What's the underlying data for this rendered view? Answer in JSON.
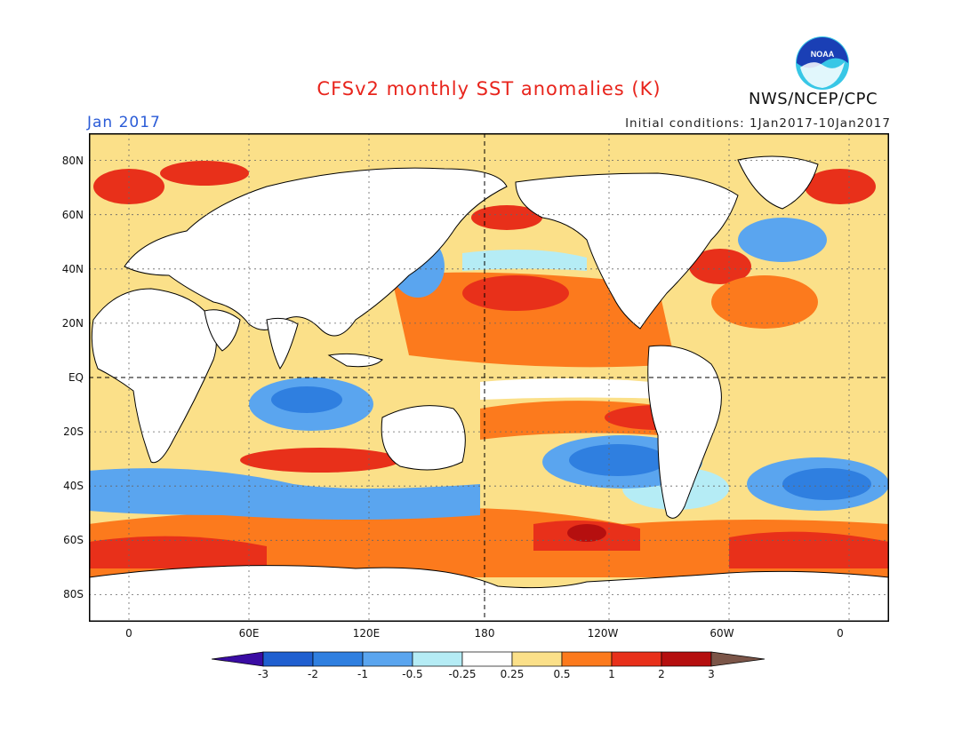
{
  "title": "CFSv2 monthly SST anomalies (K)",
  "month": "Jan 2017",
  "initial_conditions": "Initial conditions: 1Jan2017-10Jan2017",
  "agency": "NWS/NCEP/CPC",
  "logo_text": "NOAA",
  "lat_labels": [
    "80N",
    "60N",
    "40N",
    "20N",
    "EQ",
    "20S",
    "40S",
    "60S",
    "80S"
  ],
  "lon_labels": [
    "0",
    "60E",
    "120E",
    "180",
    "120W",
    "60W",
    "0"
  ],
  "colorbar": {
    "levels": [
      "-3",
      "-2",
      "-1",
      "-0.5",
      "-0.25",
      "0.25",
      "0.5",
      "1",
      "2",
      "3"
    ],
    "colors": [
      "#3a0ca3",
      "#1f5fd0",
      "#2f7fe0",
      "#5aa5ef",
      "#b5ecf5",
      "#ffffff",
      "#fbe089",
      "#fc7a1d",
      "#e8301a",
      "#b50f0f",
      "#7b5548"
    ]
  },
  "map_data": {
    "projection": "cylindrical equidistant",
    "lon_range": [
      -20,
      380
    ],
    "lat_range": [
      -90,
      90
    ],
    "reference_lines": [
      "Equator",
      "180"
    ]
  }
}
